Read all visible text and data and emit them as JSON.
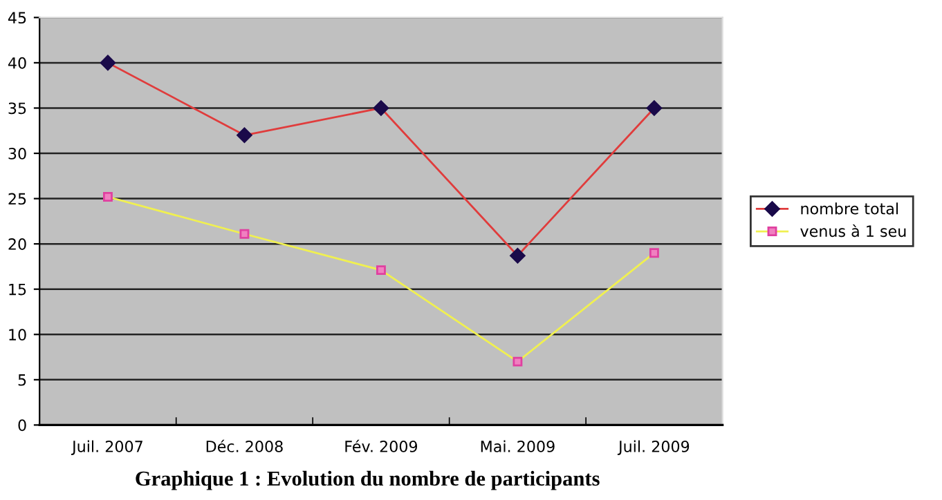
{
  "chart_data": {
    "type": "line",
    "title": "Graphique 1 : Evolution du nombre de participants",
    "categories": [
      "Juil. 2007",
      "Déc. 2008",
      "Fév. 2009",
      "Mai. 2009",
      "Juil. 2009"
    ],
    "series": [
      {
        "name": "nombre total",
        "color": "#e03c3c",
        "marker": "diamond",
        "values": [
          40,
          32,
          35,
          18.7,
          35
        ]
      },
      {
        "name": "venus à 1 seu",
        "color": "#f0f050",
        "marker": "square",
        "values": [
          25.2,
          21.1,
          17.1,
          7,
          19
        ]
      }
    ],
    "ylim": [
      0,
      45
    ],
    "yticks": [
      0,
      5,
      10,
      15,
      20,
      25,
      30,
      35,
      40,
      45
    ],
    "grid": "y",
    "legend": "right"
  }
}
